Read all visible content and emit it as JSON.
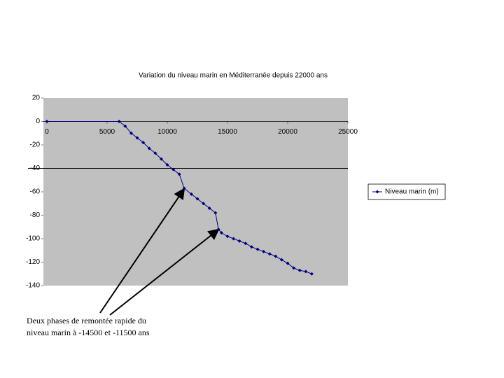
{
  "chart_data": {
    "type": "line",
    "title": "Variation du niveau marin  en Méditerranée depuis 22000 ans",
    "annotation": [
      "Deux phases de remontée rapide du",
      "niveau marin à -14500 et -11500 ans"
    ],
    "x": [
      0,
      6000,
      6500,
      7000,
      7500,
      8000,
      8500,
      9000,
      9500,
      10000,
      10500,
      11000,
      11400,
      12000,
      12500,
      13000,
      13500,
      14000,
      14250,
      14500,
      15000,
      15500,
      16000,
      16500,
      17000,
      17500,
      18000,
      18500,
      19000,
      19500,
      20000,
      20500,
      21000,
      21500,
      22000
    ],
    "series": [
      {
        "name": "Niveau marin (m)",
        "color": "#000080",
        "values": [
          0,
          0,
          -4,
          -10,
          -14,
          -18,
          -23,
          -27,
          -32,
          -37,
          -41,
          -45,
          -57,
          -62,
          -66,
          -70,
          -74,
          -78,
          -92,
          -95,
          -98,
          -100,
          -102,
          -104,
          -107,
          -109,
          -111,
          -113,
          -115,
          -118,
          -121,
          -125,
          -127,
          -128,
          -130
        ]
      }
    ],
    "xlim": [
      0,
      25000
    ],
    "xticks": [
      0,
      5000,
      10000,
      15000,
      20000,
      25000
    ],
    "ylim": [
      -140,
      20
    ],
    "yticks": [
      20,
      0,
      -20,
      -40,
      -60,
      -80,
      -100,
      -120,
      -140
    ],
    "legend": "right"
  }
}
